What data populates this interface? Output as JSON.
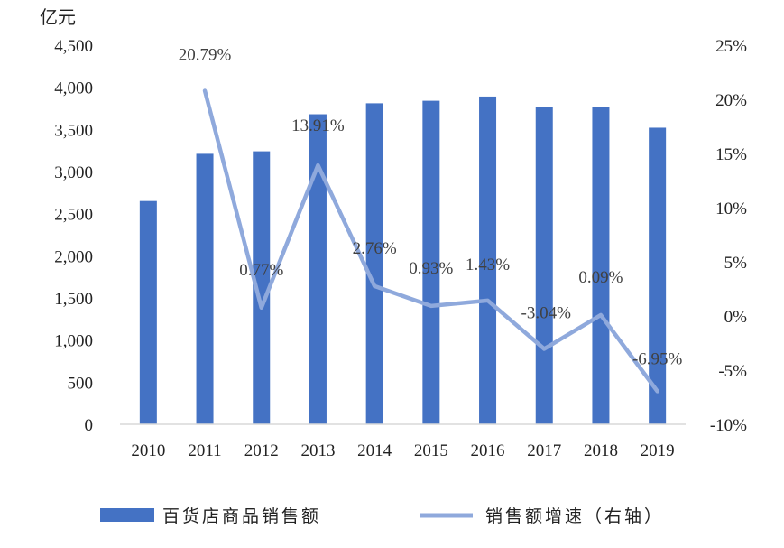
{
  "chart_data": {
    "type": "bar",
    "categories": [
      "2010",
      "2011",
      "2012",
      "2013",
      "2014",
      "2015",
      "2016",
      "2017",
      "2018",
      "2019"
    ],
    "left_axis": {
      "unit_label": "亿元",
      "ylim": [
        0,
        4500
      ],
      "ticks": [
        "0",
        "500",
        "1,000",
        "1,500",
        "2,000",
        "2,500",
        "3,000",
        "3,500",
        "4,000",
        "4,500"
      ]
    },
    "right_axis": {
      "ylim": [
        -10,
        25
      ],
      "ticks": [
        "-10%",
        "-5%",
        "0%",
        "5%",
        "10%",
        "15%",
        "20%",
        "25%"
      ]
    },
    "series": [
      {
        "name": "百货店商品销售额",
        "type": "bar",
        "axis": "left",
        "color": "#4472C4",
        "values": [
          2650,
          3210,
          3240,
          3680,
          3810,
          3840,
          3890,
          3770,
          3770,
          3520
        ]
      },
      {
        "name": "销售额增速（右轴）",
        "type": "line",
        "axis": "right",
        "color": "#8FA9DC",
        "values": [
          null,
          20.79,
          0.77,
          13.91,
          2.76,
          0.93,
          1.43,
          -3.04,
          0.09,
          -6.95
        ],
        "labels": [
          "",
          "20.79%",
          "0.77%",
          "13.91%",
          "2.76%",
          "0.93%",
          "1.43%",
          "-3.04%",
          "0.09%",
          "-6.95%"
        ]
      }
    ],
    "grid": false,
    "legend_position": "bottom"
  }
}
